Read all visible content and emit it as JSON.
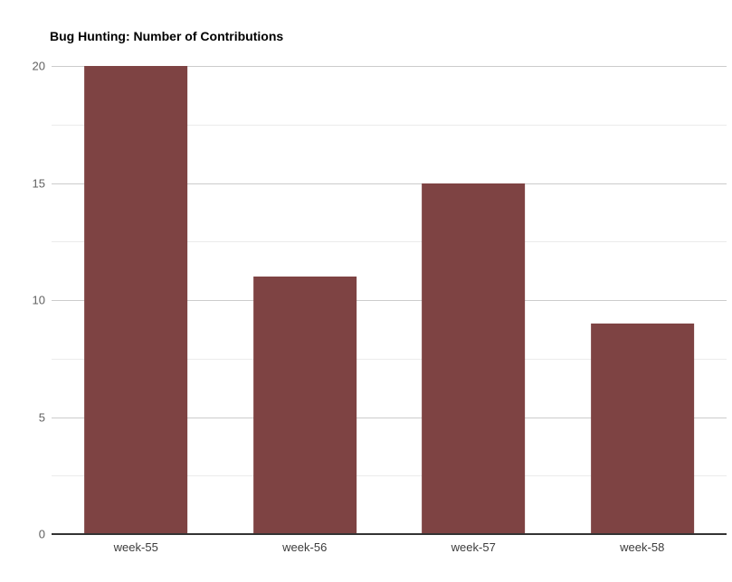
{
  "chart_data": {
    "type": "bar",
    "title": "Bug Hunting: Number of Contributions",
    "categories": [
      "week-55",
      "week-56",
      "week-57",
      "week-58"
    ],
    "values": [
      20,
      11,
      15,
      9
    ],
    "xlabel": "",
    "ylabel": "",
    "ylim": [
      0,
      20
    ],
    "yticks": [
      0,
      5,
      10,
      15,
      20
    ],
    "minor_gridlines": [
      2.5,
      7.5,
      12.5,
      17.5
    ],
    "grid": true,
    "legend_position": "none",
    "colors": {
      "bar": "#7E4343",
      "major_gridline": "#cccccc",
      "minor_gridline": "#ebebeb",
      "axis_baseline": "#333333",
      "y_tick_text": "#616161",
      "x_tick_text": "#3c3c3c",
      "title_text": "#000000"
    },
    "bar_width_fraction": 0.61
  }
}
